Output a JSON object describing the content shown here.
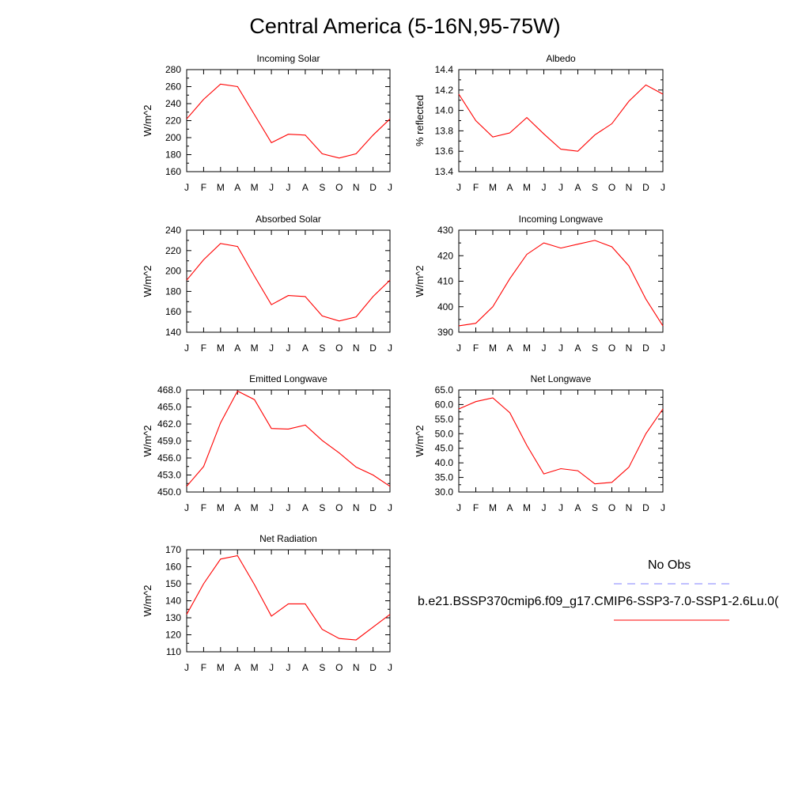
{
  "title": "Central America (5-16N,95-75W)",
  "line_color": "#ff0000",
  "obs_color": "#8080ff",
  "legend": {
    "obs_label": "No Obs",
    "model_label": "b.e21.BSSP370cmip6.f09_g17.CMIP6-SSP3-7.0-SSP1-2.6Lu.0("
  },
  "chart_data": [
    {
      "type": "line",
      "title": "Incoming Solar",
      "ylabel": "W/m^2",
      "categories": [
        "J",
        "F",
        "M",
        "A",
        "M",
        "J",
        "J",
        "A",
        "S",
        "O",
        "N",
        "D",
        "J"
      ],
      "values": [
        222,
        245,
        263,
        260,
        227,
        194,
        204,
        203,
        181,
        176,
        181,
        203,
        222
      ],
      "ylim": [
        160,
        280
      ],
      "yticks": [
        "280",
        "260",
        "240",
        "220",
        "200",
        "180",
        "160"
      ]
    },
    {
      "type": "line",
      "title": "Albedo",
      "ylabel": "% reflected",
      "categories": [
        "J",
        "F",
        "M",
        "A",
        "M",
        "J",
        "J",
        "A",
        "S",
        "O",
        "N",
        "D",
        "J"
      ],
      "values": [
        14.16,
        13.9,
        13.74,
        13.78,
        13.93,
        13.77,
        13.62,
        13.6,
        13.76,
        13.87,
        14.09,
        14.25,
        14.16
      ],
      "ylim": [
        13.4,
        14.4
      ],
      "yticks": [
        "14.4",
        "14.2",
        "14.0",
        "13.8",
        "13.6",
        "13.4"
      ]
    },
    {
      "type": "line",
      "title": "Absorbed Solar",
      "ylabel": "W/m^2",
      "categories": [
        "J",
        "F",
        "M",
        "A",
        "M",
        "J",
        "J",
        "A",
        "S",
        "O",
        "N",
        "D",
        "J"
      ],
      "values": [
        191,
        211,
        227,
        224,
        195,
        167,
        176,
        175,
        156,
        151,
        155,
        175,
        191
      ],
      "ylim": [
        140,
        240
      ],
      "yticks": [
        "240",
        "220",
        "200",
        "180",
        "160",
        "140"
      ]
    },
    {
      "type": "line",
      "title": "Incoming Longwave",
      "ylabel": "W/m^2",
      "categories": [
        "J",
        "F",
        "M",
        "A",
        "M",
        "J",
        "J",
        "A",
        "S",
        "O",
        "N",
        "D",
        "J"
      ],
      "values": [
        392.5,
        393.5,
        400,
        411,
        420.5,
        425,
        423,
        424.5,
        426,
        423.5,
        416,
        403,
        392.5
      ],
      "ylim": [
        390,
        430
      ],
      "yticks": [
        "430",
        "420",
        "410",
        "400",
        "390"
      ]
    },
    {
      "type": "line",
      "title": "Emitted Longwave",
      "ylabel": "W/m^2",
      "categories": [
        "J",
        "F",
        "M",
        "A",
        "M",
        "J",
        "J",
        "A",
        "S",
        "O",
        "N",
        "D",
        "J"
      ],
      "values": [
        451.0,
        454.5,
        462.2,
        467.8,
        466.3,
        461.2,
        461.1,
        461.8,
        459.1,
        456.9,
        454.4,
        453.0,
        451.0
      ],
      "ylim": [
        450,
        468
      ],
      "yticks": [
        "468.0",
        "465.0",
        "462.0",
        "459.0",
        "456.0",
        "453.0",
        "450.0"
      ]
    },
    {
      "type": "line",
      "title": "Net Longwave",
      "ylabel": "W/m^2",
      "categories": [
        "J",
        "F",
        "M",
        "A",
        "M",
        "J",
        "J",
        "A",
        "S",
        "O",
        "N",
        "D",
        "J"
      ],
      "values": [
        58.5,
        61.0,
        62.3,
        57.2,
        46.0,
        36.2,
        38.0,
        37.3,
        32.8,
        33.3,
        38.5,
        50.0,
        58.5
      ],
      "ylim": [
        30,
        65
      ],
      "yticks": [
        "65.0",
        "60.0",
        "55.0",
        "50.0",
        "45.0",
        "40.0",
        "35.0",
        "30.0"
      ]
    },
    {
      "type": "line",
      "title": "Net Radiation",
      "ylabel": "W/m^2",
      "categories": [
        "J",
        "F",
        "M",
        "A",
        "M",
        "J",
        "J",
        "A",
        "S",
        "O",
        "N",
        "D",
        "J"
      ],
      "values": [
        132,
        150,
        164.5,
        166.5,
        149.5,
        131,
        138.2,
        138.2,
        123.2,
        117.8,
        117,
        124.5,
        132
      ],
      "ylim": [
        110,
        170
      ],
      "yticks": [
        "170",
        "160",
        "150",
        "140",
        "130",
        "120",
        "110"
      ]
    }
  ]
}
